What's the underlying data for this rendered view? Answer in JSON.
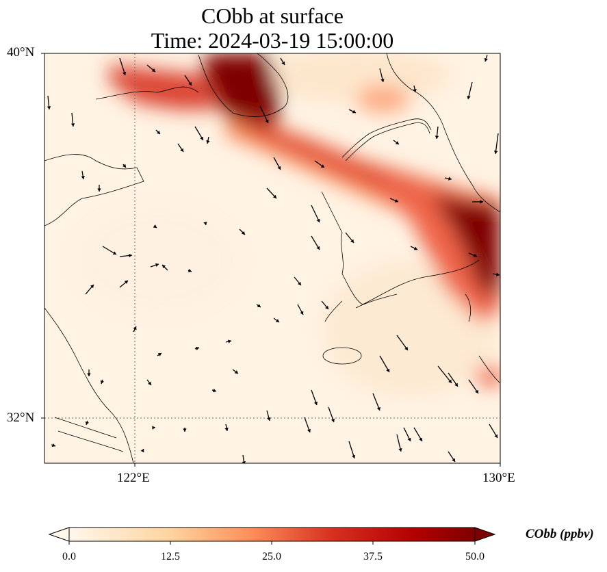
{
  "title": {
    "line1": "CObb at surface",
    "line2": "Time: 2024-03-19 15:00:00"
  },
  "map": {
    "variable": "CObb",
    "lon_range": [
      120,
      130
    ],
    "lat_range": [
      31,
      40
    ],
    "gridlines": {
      "lons": [
        122
      ],
      "lats": [
        32
      ],
      "style": "dotted"
    },
    "y_ticks": [
      "40°N",
      "32°N"
    ],
    "x_ticks": [
      "122°E",
      "130°E"
    ],
    "colormap": "OrRd",
    "plume_color": "#7f0000"
  },
  "colorbar": {
    "label": "CObb (ppbv)",
    "min": 0.0,
    "max": 50.0,
    "ticks": [
      "0.0",
      "12.5",
      "25.0",
      "37.5",
      "50.0"
    ],
    "extend": "both"
  }
}
